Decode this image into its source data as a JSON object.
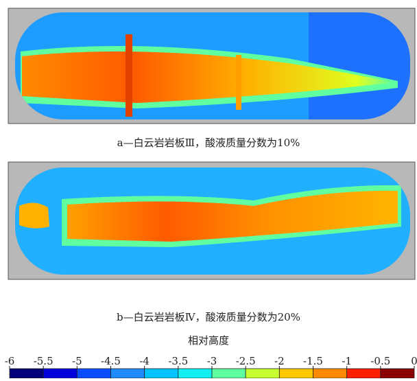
{
  "panels": [
    {
      "caption": "a—白云岩岩板Ⅲ，酸液质量分数为10%"
    },
    {
      "caption": "b—白云岩岩板Ⅳ，酸液质量分数为20%"
    }
  ],
  "colorbar": {
    "title": "相对高度",
    "lim": [
      -6,
      0
    ],
    "ticks": [
      -6,
      -5.5,
      -5,
      -4.5,
      -4,
      -3.5,
      -3,
      -2.5,
      -2,
      -1.5,
      -1,
      -0.5,
      0
    ],
    "colors": [
      "#00007a",
      "#0000d8",
      "#0a4cff",
      "#1e8cff",
      "#00c4ff",
      "#10f0f0",
      "#60ffa0",
      "#c8ff30",
      "#ffc800",
      "#ff8a00",
      "#ff2000",
      "#8a0000"
    ]
  }
}
